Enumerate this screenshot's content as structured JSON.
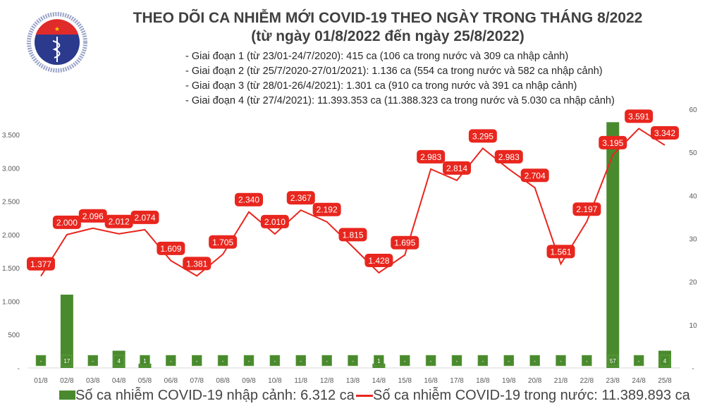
{
  "title": "THEO DÕI CA NHIỄM MỚI COVID-19 THEO NGÀY TRONG THÁNG 8/2022",
  "subtitle": "(từ ngày 01/8/2022 đến ngày 25/8/2022)",
  "notes": [
    "- Giai đoạn 1 (từ 23/01-24/7/2020): 415 ca (106 ca trong nước và 309 ca nhập cảnh)",
    "- Giai đoạn 2 (từ 25/7/2020-27/01/2021): 1.136 ca (554 ca trong nước và 582 ca nhập cảnh)",
    "- Giai đoạn 3 (từ 28/01-26/4/2021): 1.301 ca (910 ca trong nước và 391 ca nhập cảnh)",
    "- Giai đoạn 4 (từ 27/4/2021): 11.393.353 ca (11.388.323 ca trong nước và 5.030 ca nhập cảnh)"
  ],
  "logo": {
    "text_top": "BỘ Y TẾ",
    "text_bottom": "MINISTRY OF HEALTH"
  },
  "chart_data": {
    "type": "bar+line",
    "categories": [
      "01/8",
      "02/8",
      "03/8",
      "04/8",
      "05/8",
      "06/8",
      "07/8",
      "08/8",
      "09/8",
      "10/8",
      "11/8",
      "12/8",
      "13/8",
      "14/8",
      "15/8",
      "16/8",
      "17/8",
      "18/8",
      "19/8",
      "20/8",
      "21/8",
      "22/8",
      "23/8",
      "24/8",
      "25/8"
    ],
    "series": [
      {
        "name": "Số ca nhiễm COVID-19 nhập cảnh: 6.312 ca",
        "type": "bar",
        "axis": "right",
        "color": "#4a8a2e",
        "values": [
          0,
          17,
          0,
          4,
          1,
          0,
          0,
          0,
          0,
          0,
          0,
          0,
          0,
          1,
          0,
          0,
          0,
          0,
          0,
          0,
          0,
          0,
          57,
          0,
          4
        ],
        "labels": [
          "-",
          "17",
          "-",
          "4",
          "1",
          "-",
          "-",
          "-",
          "-",
          "-",
          "-",
          "-",
          "-",
          "1",
          "-",
          "-",
          "-",
          "-",
          "-",
          "-",
          "-",
          "-",
          "57",
          "-",
          "4"
        ]
      },
      {
        "name": "Số ca nhiễm COVID-19 trong nước: 11.389.893 ca",
        "type": "line",
        "axis": "left",
        "color": "#e8261e",
        "values": [
          1377,
          2000,
          2096,
          2012,
          2074,
          1609,
          1381,
          1705,
          2340,
          2010,
          2367,
          2192,
          1815,
          1428,
          1695,
          2983,
          2814,
          3295,
          2983,
          2704,
          1561,
          2197,
          3195,
          3591,
          3342
        ],
        "labels": [
          "1.377",
          "2.000",
          "2.096",
          "2.012",
          "2.074",
          "1.609",
          "1.381",
          "1.705",
          "2.340",
          "2.010",
          "2.367",
          "2.192",
          "1.815",
          "1.428",
          "1.695",
          "2.983",
          "2.814",
          "3.295",
          "2.983",
          "2.704",
          "1.561",
          "2.197",
          "3.195",
          "3.591",
          "3.342"
        ]
      }
    ],
    "left_axis": {
      "ylim": [
        0,
        3500
      ],
      "ticks": [
        "-",
        "500",
        "1.000",
        "1.500",
        "2.000",
        "2.500",
        "3.000",
        "3.500"
      ]
    },
    "right_axis": {
      "ylim": [
        0,
        60
      ],
      "ticks": [
        "-",
        "10",
        "20",
        "30",
        "40",
        "50",
        "60"
      ]
    },
    "grid": false,
    "legend": "bottom"
  }
}
